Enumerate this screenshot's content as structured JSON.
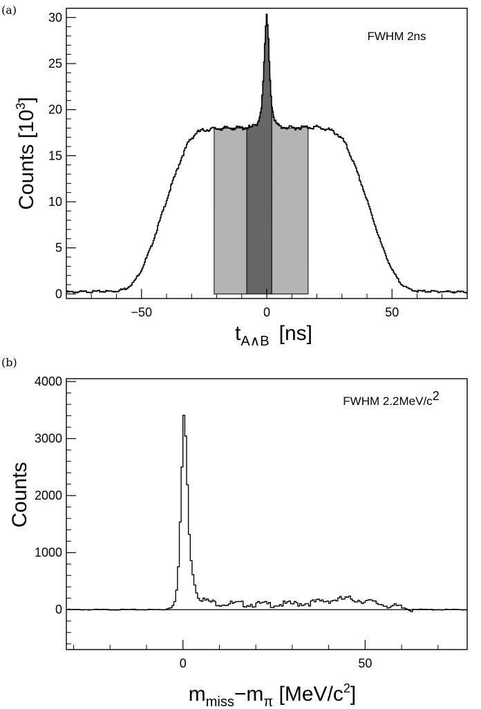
{
  "chart_data": [
    {
      "panel_label": "(a)",
      "type": "histogram",
      "annotation": "FWHM 2ns",
      "xlabel": {
        "base": "t",
        "sub": "A∧B",
        "unit": "[ns]"
      },
      "ylabel": {
        "base": "Counts  [10",
        "sup": "3",
        "end": "]"
      },
      "xlim": [
        -80,
        80
      ],
      "ylim": [
        -0.5,
        31
      ],
      "xticks": [
        -50,
        0,
        50
      ],
      "xtick_labels": [
        "−50",
        "0",
        "50"
      ],
      "yticks": [
        0,
        5,
        10,
        15,
        20,
        25,
        30
      ],
      "ytick_labels": [
        "0",
        "5",
        "10",
        "15",
        "20",
        "25",
        "30"
      ],
      "series": [
        {
          "x": [
            -80,
            -60,
            -56,
            -53,
            -50,
            -46,
            -42,
            -38,
            -34,
            -31,
            -28,
            -25,
            -22,
            -15,
            -10,
            -6,
            -4,
            -3,
            -2,
            -1.5,
            -1,
            -0.5,
            0,
            0.5,
            1,
            1.5,
            2,
            3,
            4,
            6,
            10,
            15,
            20,
            25,
            28,
            31,
            34,
            38,
            42,
            46,
            50,
            53,
            56,
            60,
            80
          ],
          "y": [
            0.2,
            0.3,
            0.6,
            1.3,
            2.6,
            5.2,
            8.5,
            11.8,
            14.8,
            16.6,
            17.5,
            17.8,
            17.9,
            18.0,
            18.0,
            18.1,
            18.4,
            19.0,
            20.5,
            22.5,
            25.5,
            28.5,
            30.2,
            28.5,
            25.5,
            22.5,
            20.5,
            19.0,
            18.4,
            18.1,
            18.0,
            18.1,
            18.1,
            17.8,
            17.4,
            16.5,
            14.7,
            11.8,
            8.5,
            5.2,
            2.6,
            1.3,
            0.6,
            0.3,
            0.2
          ]
        }
      ],
      "shaded_regions": [
        {
          "from": -21,
          "to": -8,
          "color": "#b4b4b4"
        },
        {
          "from": -8,
          "to": 2,
          "color": "#666666"
        },
        {
          "from": 2,
          "to": 16.5,
          "color": "#b4b4b4"
        }
      ]
    },
    {
      "panel_label": "(b)",
      "type": "histogram",
      "annotation": {
        "base": "FWHM 2.2MeV/c",
        "sup": "2"
      },
      "xlabel": {
        "m1": "m",
        "s1": "miss",
        "mid": "−m",
        "s2": "π",
        "unit": "  [MeV/c",
        "sup": "2",
        "end": "]"
      },
      "ylabel": "Counts",
      "xlim": [
        -32,
        78
      ],
      "ylim": [
        -700,
        4050
      ],
      "xticks": [
        0,
        50
      ],
      "xtick_labels": [
        "0",
        "50"
      ],
      "yticks": [
        0,
        1000,
        2000,
        3000,
        4000
      ],
      "ytick_labels": [
        "0",
        "1000",
        "2000",
        "3000",
        "4000"
      ],
      "series": [
        {
          "x": [
            -32,
            -15,
            -5,
            -3,
            -2,
            -1.5,
            -1,
            -0.5,
            0,
            0.3,
            0.6,
            1,
            1.5,
            2,
            3,
            4,
            5,
            6,
            8,
            10,
            15,
            20,
            25,
            30,
            35,
            40,
            43,
            46,
            50,
            55,
            60,
            63,
            66,
            78
          ],
          "y": [
            0,
            0,
            0,
            40,
            180,
            500,
            1000,
            2000,
            3000,
            3480,
            3300,
            2600,
            1700,
            1000,
            500,
            260,
            200,
            160,
            130,
            110,
            100,
            95,
            90,
            100,
            120,
            160,
            180,
            190,
            150,
            90,
            30,
            10,
            0,
            0
          ]
        }
      ]
    }
  ]
}
